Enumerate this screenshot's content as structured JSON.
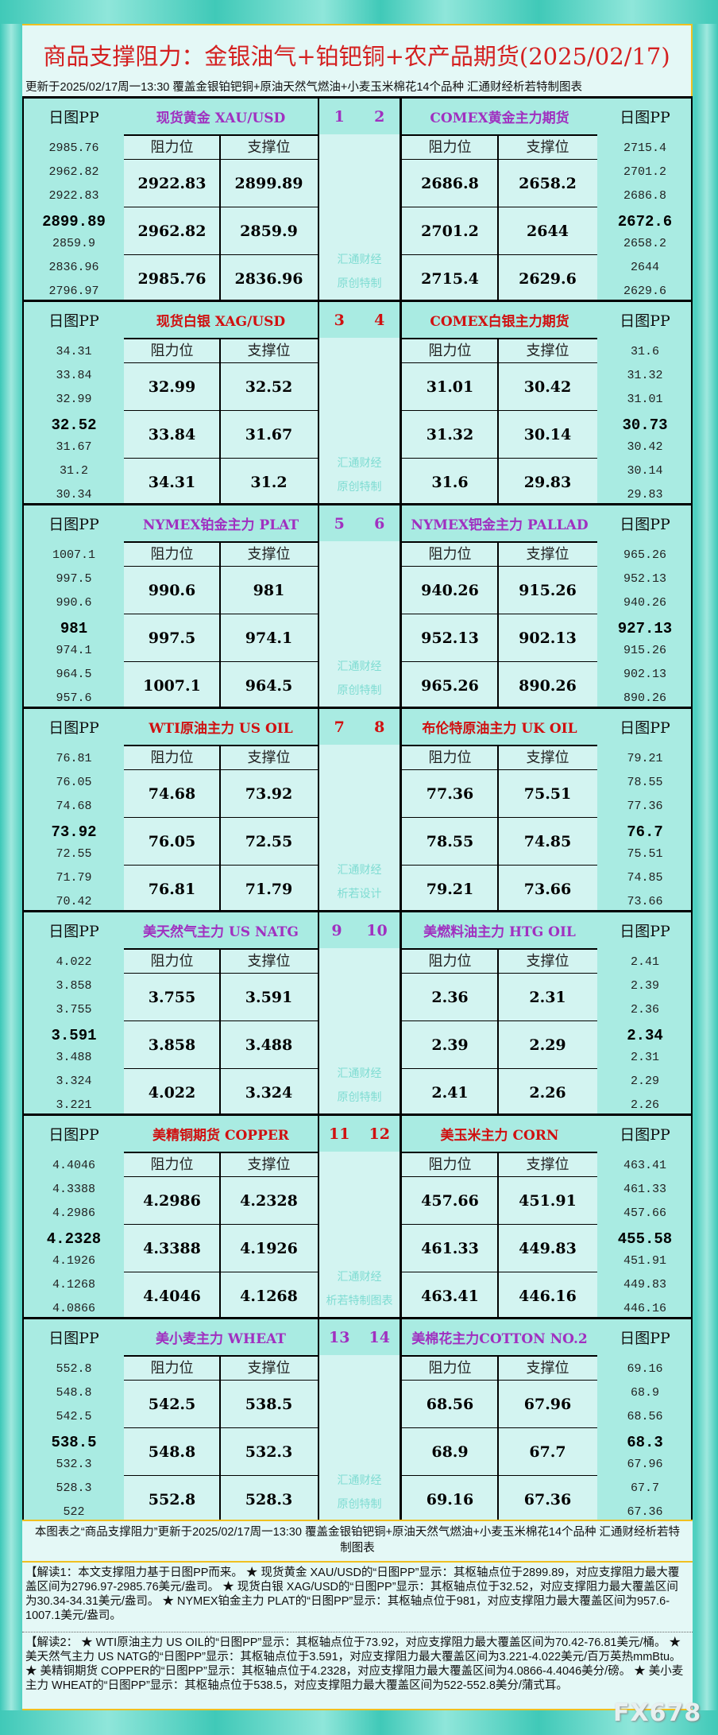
{
  "header": {
    "title": "商品支撑阻力：金银油气+铂钯铜+农产品期货(2025/02/17)",
    "subtitle": "更新于2025/02/17周一13:30  覆盖金银铂钯铜+原油天然气燃油+小麦玉米棉花14个品种  汇通财经析若特制图表"
  },
  "labels": {
    "pp": "日图PP",
    "resistance": "阻力位",
    "support": "支撑位"
  },
  "colors": {
    "purple": "#a030c0",
    "red": "#d01010"
  },
  "sections": [
    {
      "color": "purple",
      "left": {
        "num": "1",
        "name": "现货黄金 XAU/USD",
        "pp": [
          "2985.76",
          "2962.82",
          "2922.83",
          "2899.89",
          "2859.9",
          "2836.96",
          "2796.97"
        ],
        "rows": [
          [
            "2922.83",
            "2899.89"
          ],
          [
            "2962.82",
            "2859.9"
          ],
          [
            "2985.76",
            "2836.96"
          ]
        ]
      },
      "right": {
        "num": "2",
        "name": "COMEX黄金主力期货",
        "pp": [
          "2715.4",
          "2701.2",
          "2686.8",
          "2672.6",
          "2658.2",
          "2644",
          "2629.6"
        ],
        "rows": [
          [
            "2686.8",
            "2658.2"
          ],
          [
            "2701.2",
            "2644"
          ],
          [
            "2715.4",
            "2629.6"
          ]
        ]
      },
      "watermark": [
        "汇通财经",
        "原创特制"
      ]
    },
    {
      "color": "red",
      "left": {
        "num": "3",
        "name": "现货白银 XAG/USD",
        "pp": [
          "34.31",
          "33.84",
          "32.99",
          "32.52",
          "31.67",
          "31.2",
          "30.34"
        ],
        "rows": [
          [
            "32.99",
            "32.52"
          ],
          [
            "33.84",
            "31.67"
          ],
          [
            "34.31",
            "31.2"
          ]
        ]
      },
      "right": {
        "num": "4",
        "name": "COMEX白银主力期货",
        "pp": [
          "31.6",
          "31.32",
          "31.01",
          "30.73",
          "30.42",
          "30.14",
          "29.83"
        ],
        "rows": [
          [
            "31.01",
            "30.42"
          ],
          [
            "31.32",
            "30.14"
          ],
          [
            "31.6",
            "29.83"
          ]
        ]
      },
      "watermark": [
        "汇通财经",
        "原创特制"
      ]
    },
    {
      "color": "purple",
      "left": {
        "num": "5",
        "name": "NYMEX铂金主力 PLAT",
        "pp": [
          "1007.1",
          "997.5",
          "990.6",
          "981",
          "974.1",
          "964.5",
          "957.6"
        ],
        "rows": [
          [
            "990.6",
            "981"
          ],
          [
            "997.5",
            "974.1"
          ],
          [
            "1007.1",
            "964.5"
          ]
        ]
      },
      "right": {
        "num": "6",
        "name": "NYMEX钯金主力 PALLAD",
        "pp": [
          "965.26",
          "952.13",
          "940.26",
          "927.13",
          "915.26",
          "902.13",
          "890.26"
        ],
        "rows": [
          [
            "940.26",
            "915.26"
          ],
          [
            "952.13",
            "902.13"
          ],
          [
            "965.26",
            "890.26"
          ]
        ]
      },
      "watermark": [
        "汇通财经",
        "原创特制"
      ]
    },
    {
      "color": "red",
      "left": {
        "num": "7",
        "name": "WTI原油主力 US OIL",
        "pp": [
          "76.81",
          "76.05",
          "74.68",
          "73.92",
          "72.55",
          "71.79",
          "70.42"
        ],
        "rows": [
          [
            "74.68",
            "73.92"
          ],
          [
            "76.05",
            "72.55"
          ],
          [
            "76.81",
            "71.79"
          ]
        ]
      },
      "right": {
        "num": "8",
        "name": "布伦特原油主力 UK OIL",
        "pp": [
          "79.21",
          "78.55",
          "77.36",
          "76.7",
          "75.51",
          "74.85",
          "73.66"
        ],
        "rows": [
          [
            "77.36",
            "75.51"
          ],
          [
            "78.55",
            "74.85"
          ],
          [
            "79.21",
            "73.66"
          ]
        ]
      },
      "watermark": [
        "汇通财经",
        "析若设计"
      ]
    },
    {
      "color": "purple",
      "left": {
        "num": "9",
        "name": "美天然气主力 US NATG",
        "pp": [
          "4.022",
          "3.858",
          "3.755",
          "3.591",
          "3.488",
          "3.324",
          "3.221"
        ],
        "rows": [
          [
            "3.755",
            "3.591"
          ],
          [
            "3.858",
            "3.488"
          ],
          [
            "4.022",
            "3.324"
          ]
        ]
      },
      "right": {
        "num": "10",
        "name": "美燃料油主力 HTG OIL",
        "pp": [
          "2.41",
          "2.39",
          "2.36",
          "2.34",
          "2.31",
          "2.29",
          "2.26"
        ],
        "rows": [
          [
            "2.36",
            "2.31"
          ],
          [
            "2.39",
            "2.29"
          ],
          [
            "2.41",
            "2.26"
          ]
        ]
      },
      "watermark": [
        "汇通财经",
        "原创特制"
      ]
    },
    {
      "color": "red",
      "left": {
        "num": "11",
        "name": "美精铜期货 COPPER",
        "pp": [
          "4.4046",
          "4.3388",
          "4.2986",
          "4.2328",
          "4.1926",
          "4.1268",
          "4.0866"
        ],
        "rows": [
          [
            "4.2986",
            "4.2328"
          ],
          [
            "4.3388",
            "4.1926"
          ],
          [
            "4.4046",
            "4.1268"
          ]
        ]
      },
      "right": {
        "num": "12",
        "name": "美玉米主力 CORN",
        "pp": [
          "463.41",
          "461.33",
          "457.66",
          "455.58",
          "451.91",
          "449.83",
          "446.16"
        ],
        "rows": [
          [
            "457.66",
            "451.91"
          ],
          [
            "461.33",
            "449.83"
          ],
          [
            "463.41",
            "446.16"
          ]
        ]
      },
      "watermark": [
        "汇通财经",
        "析若特制图表"
      ]
    },
    {
      "color": "purple",
      "left": {
        "num": "13",
        "name": "美小麦主力 WHEAT",
        "pp": [
          "552.8",
          "548.8",
          "542.5",
          "538.5",
          "532.3",
          "528.3",
          "522"
        ],
        "rows": [
          [
            "542.5",
            "538.5"
          ],
          [
            "548.8",
            "532.3"
          ],
          [
            "552.8",
            "528.3"
          ]
        ]
      },
      "right": {
        "num": "14",
        "name": "美棉花主力COTTON NO.2",
        "pp": [
          "69.16",
          "68.9",
          "68.56",
          "68.3",
          "67.96",
          "67.7",
          "67.36"
        ],
        "rows": [
          [
            "68.56",
            "67.96"
          ],
          [
            "68.9",
            "67.7"
          ],
          [
            "69.16",
            "67.36"
          ]
        ]
      },
      "watermark": [
        "汇通财经",
        "原创特制"
      ]
    }
  ],
  "footer": {
    "caption": "本图表之“商品支撑阻力”更新于2025/02/17周一13:30 覆盖金银铂钯铜+原油天然气燃油+小麦玉米棉花14个品种 汇通财经析若特制图表",
    "interp1": "【解读1：本文支撑阻力基于日图PP而来。 ★ 现货黄金 XAU/USD的“日图PP”显示：其枢轴点位于2899.89，对应支撑阻力最大覆盖区间为2796.97-2985.76美元/盎司。 ★ 现货白银 XAG/USD的“日图PP”显示：其枢轴点位于32.52，对应支撑阻力最大覆盖区间为30.34-34.31美元/盎司。 ★ NYMEX铂金主力 PLAT的“日图PP”显示：其枢轴点位于981，对应支撑阻力最大覆盖区间为957.6-1007.1美元/盎司。",
    "interp2": "【解读2： ★ WTI原油主力 US OIL的“日图PP”显示：其枢轴点位于73.92，对应支撑阻力最大覆盖区间为70.42-76.81美元/桶。 ★ 美天然气主力 US NATG的“日图PP”显示：其枢轴点位于3.591，对应支撑阻力最大覆盖区间为3.221-4.022美元/百万英热mmBtu。 ★ 美精铜期货 COPPER的“日图PP”显示：其枢轴点位于4.2328，对应支撑阻力最大覆盖区间为4.0866-4.4046美分/磅。 ★ 美小麦主力 WHEAT的“日图PP”显示：其枢轴点位于538.5，对应支撑阻力最大覆盖区间为522-552.8美分/蒲式耳。",
    "watermark": "FX678"
  }
}
